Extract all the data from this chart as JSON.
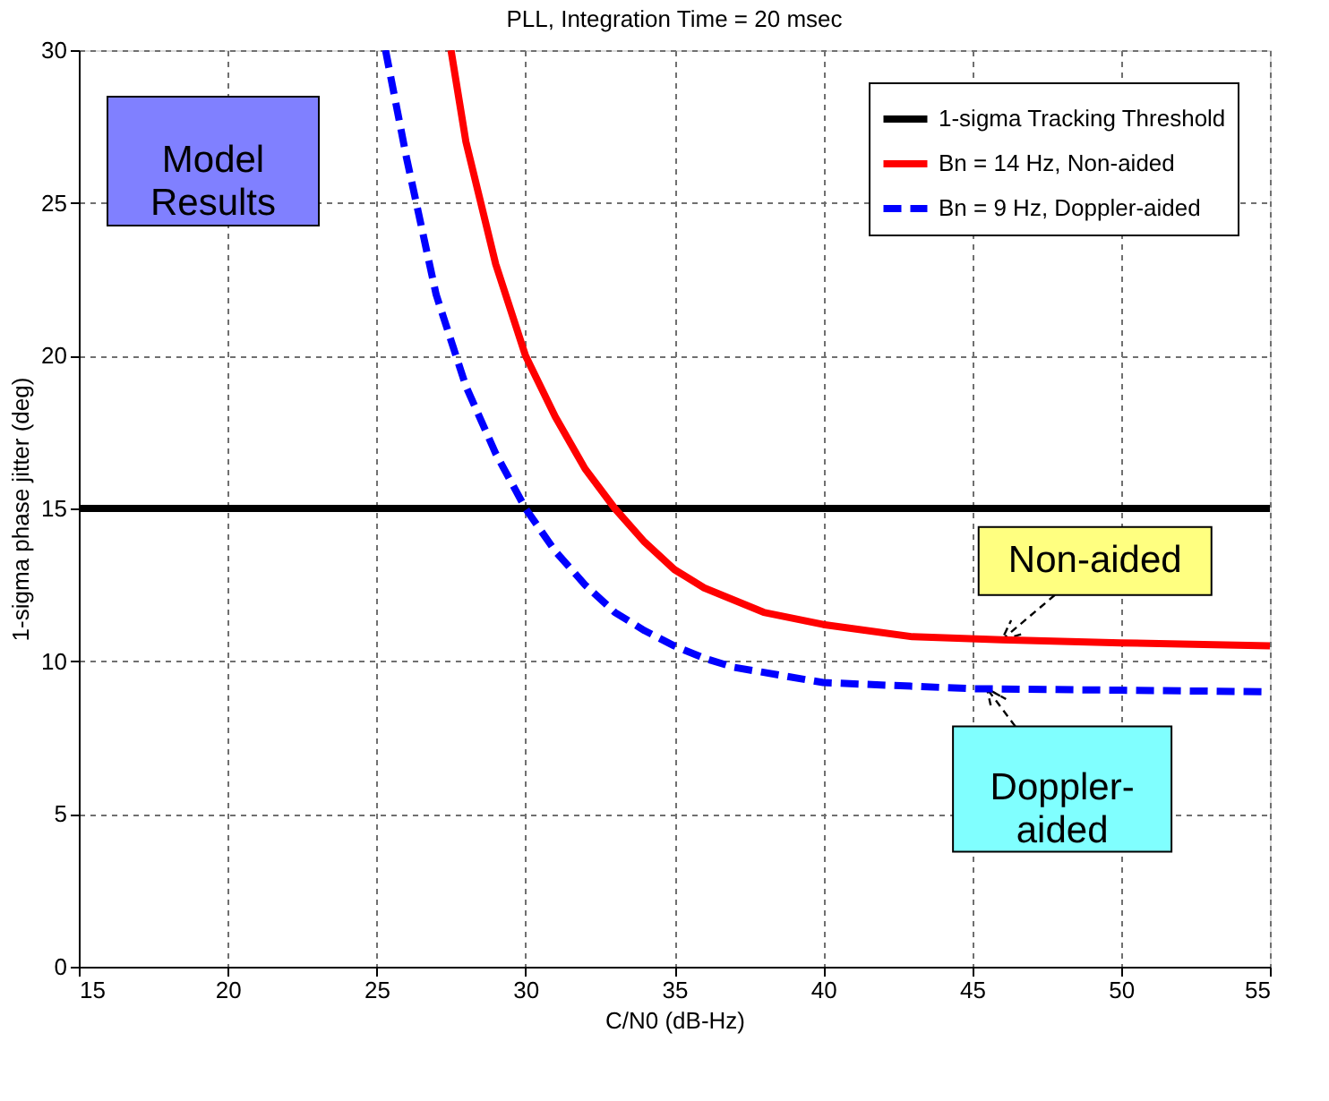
{
  "chart_data": {
    "type": "line",
    "title": "PLL, Integration Time = 20 msec",
    "xlabel": "C/N0 (dB-Hz)",
    "ylabel": "1-sigma phase jitter (deg)",
    "xlim": [
      15,
      55
    ],
    "ylim": [
      0,
      30
    ],
    "xticks": [
      15,
      20,
      25,
      30,
      35,
      40,
      45,
      50,
      55
    ],
    "yticks": [
      0,
      5,
      10,
      15,
      20,
      25,
      30
    ],
    "grid": true,
    "legend": "top right",
    "series": [
      {
        "name": "1-sigma Tracking Threshold",
        "color": "#000000",
        "line_style": "solid",
        "x": [
          15,
          55
        ],
        "values": [
          15,
          15
        ]
      },
      {
        "name": "Bn = 14 Hz, Non-aided",
        "color": "#ff0000",
        "line_style": "solid",
        "x": [
          27.5,
          28,
          29,
          30,
          31,
          32,
          33,
          34,
          35,
          36,
          38,
          40,
          43,
          46,
          50,
          55
        ],
        "values": [
          30,
          27,
          23,
          20,
          18,
          16.3,
          15,
          13.9,
          13,
          12.4,
          11.6,
          11.2,
          10.8,
          10.7,
          10.6,
          10.5
        ]
      },
      {
        "name": "Bn = 9 Hz, Doppler-aided",
        "color": "#0000ff",
        "line_style": "dashed",
        "x": [
          25.3,
          26,
          27,
          28,
          29,
          30,
          31,
          32,
          33,
          34,
          35,
          36,
          37,
          40,
          45,
          50,
          55
        ],
        "values": [
          30,
          26.5,
          22,
          19,
          16.8,
          15,
          13.6,
          12.5,
          11.6,
          11,
          10.5,
          10.1,
          9.8,
          9.3,
          9.1,
          9.05,
          9.0
        ]
      }
    ],
    "annotations": [
      "Model Results",
      {
        "text": "Non-aided",
        "x": 46,
        "y": 10.7
      },
      {
        "text": "Doppler-aided",
        "x": 45.5,
        "y": 9.1
      }
    ]
  }
}
